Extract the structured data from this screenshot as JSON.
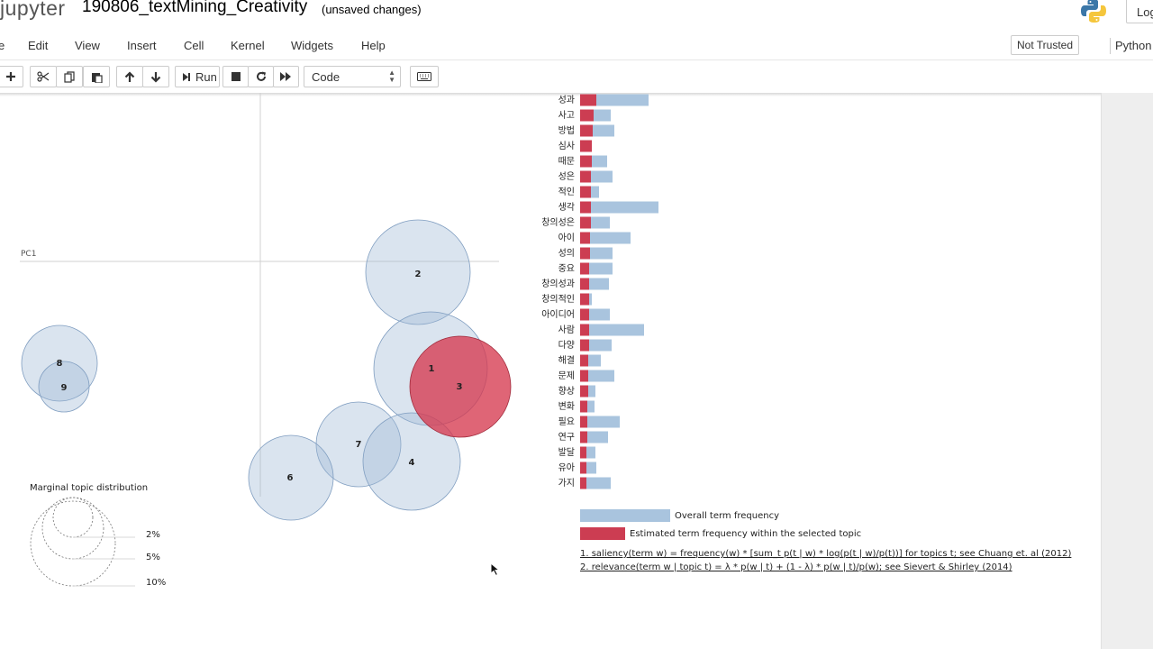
{
  "header": {
    "logo_text": "jupyter",
    "notebook_title": "190806_textMining_Creativity",
    "save_status": "(unsaved changes)",
    "logout_label": "Log"
  },
  "menubar": {
    "items": [
      "e",
      "Edit",
      "View",
      "Insert",
      "Cell",
      "Kernel",
      "Widgets",
      "Help"
    ],
    "trust_status": "Not Trusted",
    "kernel_name": "Python"
  },
  "toolbar": {
    "run_label": "Run",
    "cell_type": "Code"
  },
  "viz": {
    "pc1_label": "PC1",
    "marginal_title": "Marginal topic distribution",
    "marginal_levels": [
      "2%",
      "5%",
      "10%"
    ],
    "topics": [
      {
        "id": "1",
        "selected": false
      },
      {
        "id": "2",
        "selected": false
      },
      {
        "id": "3",
        "selected": true
      },
      {
        "id": "4",
        "selected": false
      },
      {
        "id": "6",
        "selected": false
      },
      {
        "id": "7",
        "selected": false
      },
      {
        "id": "8",
        "selected": false
      },
      {
        "id": "9",
        "selected": false
      }
    ],
    "colors": {
      "topic_circle": "#9eb8d6",
      "selected_circle": "#d63a4f",
      "overall_bar": "#a9c4de",
      "topic_bar": "#cc3d52"
    }
  },
  "chart_data": {
    "type": "bar",
    "orientation": "horizontal",
    "categories": [
      "성과",
      "사고",
      "방법",
      "심사",
      "때문",
      "성은",
      "적인",
      "생각",
      "창의성은",
      "아이",
      "성의",
      "중요",
      "창의성과",
      "창의적인",
      "아이디어",
      "사람",
      "다양",
      "해결",
      "문제",
      "향상",
      "변화",
      "필요",
      "연구",
      "발달",
      "유아",
      "가지"
    ],
    "series": [
      {
        "name": "Overall term frequency",
        "values": [
          76,
          34,
          38,
          13,
          30,
          36,
          21,
          87,
          33,
          56,
          36,
          36,
          32,
          13,
          33,
          71,
          35,
          23,
          38,
          17,
          16,
          44,
          31,
          17,
          18,
          34
        ]
      },
      {
        "name": "Estimated term frequency within the selected topic",
        "values": [
          18,
          15,
          14,
          13,
          13,
          12,
          12,
          12,
          12,
          11,
          11,
          10,
          10,
          10,
          10,
          10,
          10,
          9,
          9,
          9,
          8,
          8,
          8,
          7,
          7,
          7
        ]
      }
    ],
    "notes": [
      "1. saliency(term w) = frequency(w) * [sum_t p(t | w) * log(p(t | w)/p(t))] for topics t; see Chuang et. al (2012)",
      "2. relevance(term w | topic t) = λ * p(w | t) + (1 - λ) * p(w | t)/p(w); see Sievert & Shirley (2014)"
    ]
  }
}
